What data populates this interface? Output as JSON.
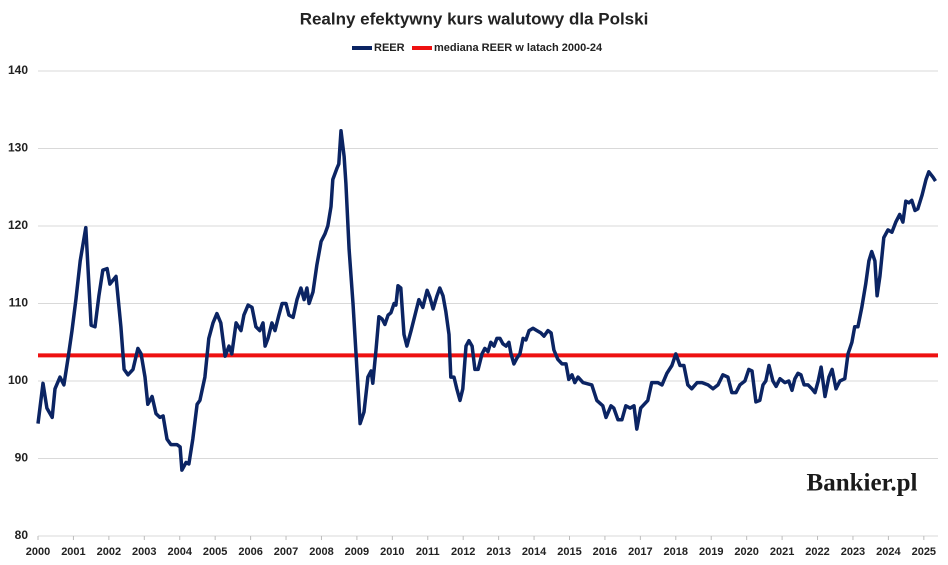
{
  "chart_data": {
    "type": "line",
    "title": "Realny efektywny kurs walutowy dla Polski",
    "x": [
      2000.0,
      2000.14,
      2000.25,
      2000.4,
      2000.48,
      2000.62,
      2000.73,
      2000.85,
      2000.96,
      2001.07,
      2001.19,
      2001.35,
      2001.5,
      2001.61,
      2001.72,
      2001.83,
      2001.95,
      2002.03,
      2002.2,
      2002.34,
      2002.43,
      2002.54,
      2002.68,
      2002.82,
      2002.91,
      2003.02,
      2003.1,
      2003.22,
      2003.33,
      2003.44,
      2003.53,
      2003.64,
      2003.75,
      2003.92,
      2004.01,
      2004.06,
      2004.18,
      2004.26,
      2004.37,
      2004.49,
      2004.57,
      2004.71,
      2004.82,
      2004.94,
      2005.05,
      2005.16,
      2005.28,
      2005.39,
      2005.47,
      2005.59,
      2005.73,
      2005.81,
      2005.93,
      2006.04,
      2006.15,
      2006.26,
      2006.35,
      2006.41,
      2006.49,
      2006.6,
      2006.69,
      2006.8,
      2006.89,
      2007.0,
      2007.08,
      2007.2,
      2007.31,
      2007.42,
      2007.51,
      2007.59,
      2007.65,
      2007.76,
      2007.87,
      2007.99,
      2008.1,
      2008.18,
      2008.27,
      2008.32,
      2008.44,
      2008.49,
      2008.55,
      2008.64,
      2008.69,
      2008.78,
      2008.89,
      2008.97,
      2009.09,
      2009.2,
      2009.31,
      2009.4,
      2009.45,
      2009.54,
      2009.62,
      2009.71,
      2009.79,
      2009.88,
      2009.96,
      2010.05,
      2010.1,
      2010.16,
      2010.24,
      2010.33,
      2010.41,
      2010.53,
      2010.64,
      2010.75,
      2010.86,
      2010.98,
      2011.06,
      2011.15,
      2011.26,
      2011.34,
      2011.43,
      2011.51,
      2011.6,
      2011.65,
      2011.74,
      2011.82,
      2011.91,
      2011.99,
      2012.08,
      2012.16,
      2012.25,
      2012.33,
      2012.42,
      2012.53,
      2012.61,
      2012.7,
      2012.78,
      2012.87,
      2012.95,
      2013.04,
      2013.12,
      2013.21,
      2013.29,
      2013.35,
      2013.43,
      2013.52,
      2013.6,
      2013.69,
      2013.77,
      2013.86,
      2013.97,
      2014.08,
      2014.19,
      2014.28,
      2014.39,
      2014.48,
      2014.56,
      2014.67,
      2014.79,
      2014.9,
      2014.98,
      2015.07,
      2015.15,
      2015.24,
      2015.38,
      2015.63,
      2015.77,
      2015.94,
      2016.03,
      2016.17,
      2016.25,
      2016.37,
      2016.48,
      2016.59,
      2016.71,
      2016.82,
      2016.9,
      2017.01,
      2017.21,
      2017.32,
      2017.49,
      2017.61,
      2017.75,
      2017.89,
      2018.0,
      2018.12,
      2018.23,
      2018.34,
      2018.45,
      2018.6,
      2018.74,
      2018.91,
      2019.05,
      2019.19,
      2019.33,
      2019.47,
      2019.58,
      2019.7,
      2019.81,
      2019.95,
      2020.06,
      2020.15,
      2020.26,
      2020.37,
      2020.46,
      2020.54,
      2020.63,
      2020.74,
      2020.83,
      2020.94,
      2021.08,
      2021.19,
      2021.28,
      2021.36,
      2021.45,
      2021.53,
      2021.62,
      2021.73,
      2021.84,
      2021.93,
      2022.02,
      2022.1,
      2022.21,
      2022.32,
      2022.41,
      2022.52,
      2022.63,
      2022.77,
      2022.86,
      2022.97,
      2023.05,
      2023.14,
      2023.25,
      2023.36,
      2023.45,
      2023.53,
      2023.62,
      2023.68,
      2023.76,
      2023.87,
      2023.99,
      2024.1,
      2024.21,
      2024.32,
      2024.41,
      2024.49,
      2024.58,
      2024.66,
      2024.75,
      2024.83,
      2024.95,
      2025.06,
      2025.14,
      2025.26,
      2025.33
    ],
    "series": [
      {
        "name": "REER",
        "color": "#0b2463",
        "values": [
          94.5,
          99.7,
          96.5,
          95.3,
          99,
          100.5,
          99.5,
          103,
          106.5,
          110.5,
          115.5,
          119.8,
          107.2,
          107,
          111,
          114.3,
          114.5,
          112.5,
          113.5,
          107,
          101.5,
          100.8,
          101.5,
          104.2,
          103.5,
          100.5,
          97,
          98,
          95.8,
          95.3,
          95.5,
          92.5,
          91.8,
          91.8,
          91.5,
          88.5,
          89.5,
          89.3,
          92.5,
          97,
          97.5,
          100.5,
          105.5,
          107.5,
          108.7,
          107.5,
          103.2,
          104.5,
          103.5,
          107.5,
          106.5,
          108.5,
          109.8,
          109.5,
          107,
          106.5,
          107.5,
          104.5,
          105.5,
          107.5,
          106.5,
          108.5,
          110,
          110,
          108.5,
          108.2,
          110.5,
          112,
          110.5,
          112,
          110,
          111.5,
          115,
          118,
          119,
          120,
          122.5,
          126,
          127.5,
          128,
          132.3,
          129,
          125.5,
          117,
          110,
          104,
          94.5,
          96,
          100.5,
          101.3,
          99.7,
          104,
          108.3,
          108,
          107.3,
          108.5,
          108.8,
          110,
          109.8,
          112.3,
          112,
          106,
          104.5,
          106.5,
          108.5,
          110.5,
          109.5,
          111.7,
          110.8,
          109.3,
          111,
          112,
          111,
          109,
          106,
          100.5,
          100.5,
          99,
          97.5,
          99,
          104.5,
          105.2,
          104.5,
          101.5,
          101.5,
          103.5,
          104.2,
          103.8,
          105,
          104.5,
          105.5,
          105.5,
          104.8,
          104.5,
          105,
          103.5,
          102.2,
          103,
          103.5,
          105.5,
          105.3,
          106.5,
          106.8,
          106.5,
          106.2,
          105.8,
          106.5,
          106.2,
          104,
          102.8,
          102.2,
          102.2,
          100.2,
          100.8,
          99.8,
          100.5,
          99.8,
          99.5,
          97.5,
          96.8,
          95.3,
          96.8,
          96.5,
          95,
          95,
          96.8,
          96.5,
          96.8,
          93.8,
          96.5,
          97.5,
          99.8,
          99.8,
          99.5,
          101,
          102,
          103.5,
          102,
          102,
          99.5,
          99,
          99.8,
          99.8,
          99.5,
          99,
          99.5,
          100.8,
          100.5,
          98.5,
          98.5,
          99.5,
          100,
          101.5,
          101.3,
          97.3,
          97.5,
          99.5,
          100,
          102,
          100,
          99.3,
          100.3,
          99.8,
          100,
          98.8,
          100.3,
          101,
          100.8,
          99.5,
          99.5,
          99,
          98.5,
          100,
          101.8,
          98,
          100.5,
          101.5,
          99,
          100,
          100.3,
          103.5,
          105,
          107,
          107,
          109.5,
          112.5,
          115.5,
          116.7,
          115.5,
          111,
          113.5,
          118.5,
          119.5,
          119.2,
          120.5,
          121.5,
          120.5,
          123.2,
          123,
          123.3,
          122,
          122.2,
          124,
          126,
          127,
          126.3,
          125.8
        ]
      }
    ],
    "reference_line": {
      "name": "mediana REER w latach 2000-24",
      "value": 103.3,
      "color": "#ee1111"
    },
    "xlim": [
      2000,
      2025.4
    ],
    "xticks": [
      2000,
      2001,
      2002,
      2003,
      2004,
      2005,
      2006,
      2007,
      2008,
      2009,
      2010,
      2011,
      2012,
      2013,
      2014,
      2015,
      2016,
      2017,
      2018,
      2019,
      2020,
      2021,
      2022,
      2023,
      2024,
      2025
    ],
    "ylim": [
      80,
      140
    ],
    "yticks": [
      80,
      90,
      100,
      110,
      120,
      130,
      140
    ],
    "grid": true,
    "legend_position": "top",
    "logo": "Bankier.pl"
  }
}
